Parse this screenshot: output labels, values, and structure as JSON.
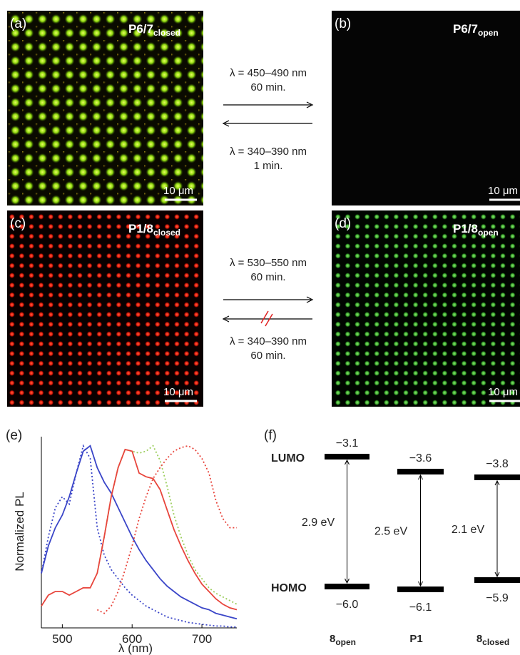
{
  "panels": [
    {
      "label": "(a)",
      "title": "P6/7",
      "subscript": "closed",
      "scale_bar": "10 μm"
    },
    {
      "label": "(b)",
      "title": "P6/7",
      "subscript": "open",
      "scale_bar": "10 μm"
    },
    {
      "label": "(c)",
      "title": "P1/8",
      "subscript": "closed",
      "scale_bar": "10 μm"
    },
    {
      "label": "(d)",
      "title": "P1/8",
      "subscript": "open",
      "scale_bar": "10 μm"
    }
  ],
  "transitions": [
    {
      "forward": "λ = 450–490 nm",
      "forward_time": "60 min.",
      "reverse": "λ = 340–390 nm",
      "reverse_time": "1 min."
    },
    {
      "forward": "λ = 530–550 nm",
      "forward_time": "60 min.",
      "reverse": "λ = 340–390 nm",
      "reverse_time": "60 min."
    }
  ],
  "chart_data": {
    "type": "line",
    "panel_label": "(e)",
    "y_label": "Normalized PL",
    "x_label": "λ (nm)",
    "x": [
      470,
      480,
      490,
      500,
      510,
      520,
      530,
      540,
      550,
      560,
      570,
      580,
      590,
      600,
      610,
      620,
      630,
      640,
      650,
      660,
      670,
      680,
      690,
      700,
      710,
      720,
      730,
      740,
      750
    ],
    "xlim": [
      470,
      750
    ],
    "xticks": [
      500,
      600,
      700
    ],
    "ylim": [
      0,
      1.05
    ],
    "series": [
      {
        "color": "#3a45c8",
        "style": "solid",
        "values": [
          0.3,
          0.45,
          0.55,
          0.62,
          0.72,
          0.85,
          0.97,
          1.0,
          0.88,
          0.8,
          0.74,
          0.66,
          0.58,
          0.5,
          0.43,
          0.37,
          0.32,
          0.27,
          0.23,
          0.2,
          0.17,
          0.15,
          0.13,
          0.11,
          0.1,
          0.08,
          0.07,
          0.06,
          0.05
        ]
      },
      {
        "color": "#3a45c8",
        "style": "dotted",
        "values": [
          0.3,
          0.5,
          0.66,
          0.72,
          0.68,
          0.85,
          1.0,
          0.93,
          0.55,
          0.4,
          0.32,
          0.27,
          0.22,
          0.18,
          0.15,
          0.12,
          0.1,
          0.08,
          0.06,
          0.05,
          0.04,
          0.03,
          0.025,
          0.02,
          0.015,
          0.01,
          0.01,
          0.005,
          0.005
        ]
      },
      {
        "color": "#9acd5a",
        "style": "dotted",
        "values": [
          null,
          null,
          null,
          null,
          null,
          null,
          null,
          null,
          0.3,
          0.5,
          0.72,
          0.88,
          0.98,
          0.97,
          0.96,
          0.97,
          1.0,
          0.92,
          0.78,
          0.62,
          0.5,
          0.4,
          0.32,
          0.27,
          0.22,
          0.19,
          0.17,
          0.15,
          0.13
        ]
      },
      {
        "color": "#e8453c",
        "style": "solid",
        "values": [
          0.12,
          0.18,
          0.2,
          0.2,
          0.18,
          0.2,
          0.22,
          0.22,
          0.3,
          0.5,
          0.72,
          0.88,
          0.98,
          0.97,
          0.85,
          0.83,
          0.82,
          0.76,
          0.65,
          0.54,
          0.45,
          0.37,
          0.3,
          0.24,
          0.2,
          0.16,
          0.13,
          0.11,
          0.1
        ]
      },
      {
        "color": "#e8453c",
        "style": "dotted",
        "values": [
          null,
          null,
          null,
          null,
          null,
          null,
          null,
          null,
          0.1,
          0.08,
          0.12,
          0.2,
          0.32,
          0.45,
          0.6,
          0.72,
          0.82,
          0.88,
          0.93,
          0.97,
          0.99,
          1.0,
          0.98,
          0.93,
          0.85,
          0.7,
          0.6,
          0.55,
          0.55
        ]
      }
    ]
  },
  "energy_diagram": {
    "panel_label": "(f)",
    "lumo_label": "LUMO",
    "homo_label": "HOMO",
    "materials": [
      {
        "name": "8",
        "subscript": "open",
        "lumo": "−3.1",
        "homo": "−6.0",
        "gap": "2.9 eV"
      },
      {
        "name": "P1",
        "lumo": "−3.6",
        "homo": "−6.1",
        "gap": "2.5 eV"
      },
      {
        "name": "8",
        "subscript": "closed",
        "lumo": "−3.8",
        "homo": "−5.9",
        "gap": "2.1 eV"
      }
    ]
  }
}
